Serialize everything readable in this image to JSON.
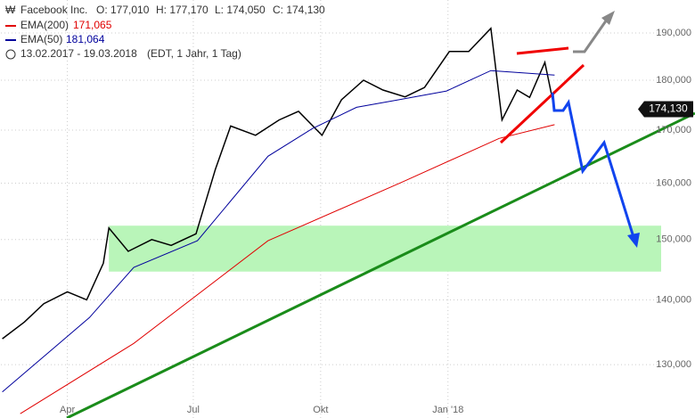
{
  "chart_data": {
    "type": "line",
    "title": "Facebook Inc.",
    "ohlc_labels": [
      "O: 177,010",
      "H: 177,170",
      "L: 174,050",
      "C: 174,130"
    ],
    "date_range": "13.02.2017 - 19.03.2018",
    "date_note": "(EDT, 1 Jahr, 1 Tag)",
    "log_scale": true,
    "grid": true,
    "xlim": [
      "2017-02-12",
      "2018-06-04"
    ],
    "xticks": [
      {
        "value": "2017-04-01",
        "label": "Apr"
      },
      {
        "value": "2017-07-01",
        "label": "Jul"
      },
      {
        "value": "2017-10-01",
        "label": "Okt"
      },
      {
        "value": "2018-01-01",
        "label": "Jan '18"
      }
    ],
    "ylim": [
      122.3,
      197.3
    ],
    "yticks": [
      {
        "value": 130,
        "label": "130,000"
      },
      {
        "value": 140,
        "label": "140,000"
      },
      {
        "value": 150,
        "label": "150,000"
      },
      {
        "value": 160,
        "label": "160,000"
      },
      {
        "value": 170,
        "label": "170,000"
      },
      {
        "value": 180,
        "label": "180,000"
      },
      {
        "value": 190,
        "label": "190,000"
      }
    ],
    "band": [
      144.6,
      152.4
    ],
    "band_start": "2017-05-01",
    "band_color": "#b9f5b9",
    "series": [
      {
        "name": "Facebook Inc.",
        "color": "#000000",
        "last_label": "174,130",
        "x": [
          "2017-02-13",
          "2017-03-01",
          "2017-03-15",
          "2017-04-01",
          "2017-04-15",
          "2017-04-27",
          "2017-05-01",
          "2017-05-15",
          "2017-06-01",
          "2017-06-15",
          "2017-07-03",
          "2017-07-17",
          "2017-07-28",
          "2017-08-15",
          "2017-09-01",
          "2017-09-15",
          "2017-10-02",
          "2017-10-16",
          "2017-11-01",
          "2017-11-15",
          "2017-12-01",
          "2017-12-15",
          "2018-01-02",
          "2018-01-16",
          "2018-02-01",
          "2018-02-09",
          "2018-02-20",
          "2018-03-01",
          "2018-03-12",
          "2018-03-19"
        ],
        "values": [
          133.9,
          136.5,
          139.4,
          141.3,
          140,
          146,
          152,
          148,
          150,
          149,
          151,
          162.6,
          170.8,
          169,
          172,
          173.7,
          169,
          176,
          180,
          178,
          176.6,
          178.5,
          186,
          186,
          191,
          172,
          178,
          176.5,
          183.7,
          174.13
        ]
      },
      {
        "name": "EMA(200)",
        "color": "#e00000",
        "last_label": "171,065",
        "x": [
          "2017-02-26",
          "2017-05-19",
          "2017-08-24",
          "2017-11-28",
          "2018-02-07",
          "2018-03-19"
        ],
        "values": [
          122.9,
          133.2,
          149.8,
          160.1,
          168.4,
          171.065
        ]
      },
      {
        "name": "EMA(50)",
        "color": "#00009c",
        "last_label": "181,064",
        "x": [
          "2017-02-13",
          "2017-04-17",
          "2017-05-19",
          "2017-07-04",
          "2017-08-24",
          "2017-09-25",
          "2017-10-27",
          "2017-11-28",
          "2017-12-31",
          "2018-02-01",
          "2018-03-19"
        ],
        "values": [
          126,
          137.2,
          145.3,
          149.8,
          165,
          170.3,
          174.5,
          176.1,
          177.8,
          182,
          181.064
        ]
      }
    ]
  }
}
